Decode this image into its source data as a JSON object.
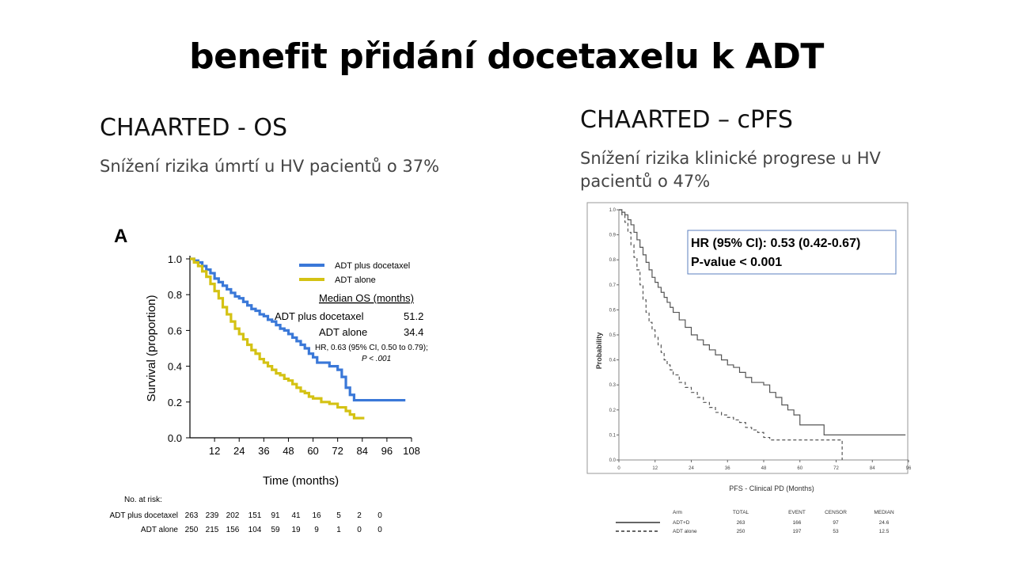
{
  "slide": {
    "title": "benefit přidání docetaxelu k ADT",
    "left_heading": "CHAARTED - OS",
    "left_subtitle": "Snížení rizika úmrtí u HV pacientů o 37%",
    "right_heading": "CHAARTED – cPFS",
    "right_subtitle_line1": "Snížení rizika klinické progrese u HV",
    "right_subtitle_line2": "pacientů o 47%"
  },
  "chart_data": [
    {
      "type": "line",
      "panel_label": "A",
      "xlabel": "Time (months)",
      "ylabel": "Survival (proportion)",
      "xlim": [
        0,
        108
      ],
      "ylim": [
        0,
        1.0
      ],
      "xticks": [
        12,
        24,
        36,
        48,
        60,
        72,
        84,
        96,
        108
      ],
      "yticks": [
        0.0,
        0.2,
        0.4,
        0.6,
        0.8,
        1.0
      ],
      "ytick_labels": [
        "0.0",
        "0.2",
        "0.4",
        "0.6",
        "0.8",
        "1.0"
      ],
      "legend": [
        {
          "name": "ADT plus docetaxel",
          "color": "#3a78d8"
        },
        {
          "name": "ADT alone",
          "color": "#d4c214"
        }
      ],
      "series": [
        {
          "name": "ADT plus docetaxel",
          "color": "#3a78d8",
          "points": [
            [
              0,
              1.0
            ],
            [
              2,
              0.99
            ],
            [
              4,
              0.98
            ],
            [
              6,
              0.96
            ],
            [
              8,
              0.94
            ],
            [
              10,
              0.92
            ],
            [
              12,
              0.89
            ],
            [
              14,
              0.87
            ],
            [
              16,
              0.85
            ],
            [
              18,
              0.83
            ],
            [
              20,
              0.81
            ],
            [
              22,
              0.79
            ],
            [
              24,
              0.78
            ],
            [
              26,
              0.76
            ],
            [
              28,
              0.74
            ],
            [
              30,
              0.72
            ],
            [
              32,
              0.71
            ],
            [
              34,
              0.69
            ],
            [
              36,
              0.68
            ],
            [
              38,
              0.66
            ],
            [
              40,
              0.65
            ],
            [
              42,
              0.63
            ],
            [
              44,
              0.61
            ],
            [
              46,
              0.6
            ],
            [
              48,
              0.58
            ],
            [
              50,
              0.56
            ],
            [
              52,
              0.54
            ],
            [
              54,
              0.52
            ],
            [
              56,
              0.5
            ],
            [
              58,
              0.47
            ],
            [
              60,
              0.45
            ],
            [
              62,
              0.42
            ],
            [
              66,
              0.42
            ],
            [
              68,
              0.4
            ],
            [
              72,
              0.38
            ],
            [
              74,
              0.34
            ],
            [
              76,
              0.28
            ],
            [
              78,
              0.24
            ],
            [
              80,
              0.21
            ],
            [
              105,
              0.21
            ]
          ]
        },
        {
          "name": "ADT alone",
          "color": "#d4c214",
          "points": [
            [
              0,
              1.0
            ],
            [
              2,
              0.98
            ],
            [
              4,
              0.96
            ],
            [
              6,
              0.93
            ],
            [
              8,
              0.9
            ],
            [
              10,
              0.86
            ],
            [
              12,
              0.82
            ],
            [
              14,
              0.78
            ],
            [
              16,
              0.73
            ],
            [
              18,
              0.69
            ],
            [
              20,
              0.65
            ],
            [
              22,
              0.61
            ],
            [
              24,
              0.58
            ],
            [
              26,
              0.55
            ],
            [
              28,
              0.52
            ],
            [
              30,
              0.49
            ],
            [
              32,
              0.47
            ],
            [
              34,
              0.44
            ],
            [
              36,
              0.42
            ],
            [
              38,
              0.4
            ],
            [
              40,
              0.38
            ],
            [
              42,
              0.36
            ],
            [
              44,
              0.35
            ],
            [
              46,
              0.33
            ],
            [
              48,
              0.32
            ],
            [
              50,
              0.3
            ],
            [
              52,
              0.28
            ],
            [
              54,
              0.26
            ],
            [
              56,
              0.25
            ],
            [
              58,
              0.23
            ],
            [
              60,
              0.22
            ],
            [
              64,
              0.2
            ],
            [
              68,
              0.19
            ],
            [
              72,
              0.17
            ],
            [
              76,
              0.15
            ],
            [
              78,
              0.13
            ],
            [
              80,
              0.11
            ],
            [
              85,
              0.11
            ]
          ]
        }
      ],
      "annotations": {
        "median_header": "Median OS (months)",
        "rows": [
          {
            "label": "ADT plus docetaxel",
            "value": "51.2"
          },
          {
            "label": "ADT alone",
            "value": "34.4"
          }
        ],
        "hr_line1": "HR, 0.63 (95% CI, 0.50 to 0.79);",
        "hr_line2": "P < .001"
      },
      "at_risk": {
        "header": "No. at risk:",
        "rows": [
          {
            "name": "ADT plus docetaxel",
            "values": [
              "263",
              "239",
              "202",
              "151",
              "91",
              "41",
              "16",
              "5",
              "2",
              "0"
            ]
          },
          {
            "name": "ADT alone",
            "values": [
              "250",
              "215",
              "156",
              "104",
              "59",
              "19",
              "9",
              "1",
              "0",
              "0"
            ]
          }
        ]
      }
    },
    {
      "type": "line",
      "xlabel": "PFS - Clinical PD (Months)",
      "ylabel": "Probability",
      "xlim": [
        0,
        96
      ],
      "ylim": [
        0,
        1.0
      ],
      "xticks": [
        0,
        12,
        24,
        36,
        48,
        60,
        72,
        84,
        96
      ],
      "yticks": [
        0.0,
        0.1,
        0.2,
        0.3,
        0.4,
        0.5,
        0.6,
        0.7,
        0.8,
        0.9,
        1.0
      ],
      "ytick_labels": [
        "0.0",
        "0.1",
        "0.2",
        "0.3",
        "0.4",
        "0.5",
        "0.6",
        "0.7",
        "0.8",
        "0.9",
        "1.0"
      ],
      "series": [
        {
          "name": "ADT+D",
          "style": "solid",
          "color": "#555555",
          "points": [
            [
              0,
              1.0
            ],
            [
              1,
              0.99
            ],
            [
              2,
              0.98
            ],
            [
              3,
              0.96
            ],
            [
              4,
              0.94
            ],
            [
              5,
              0.91
            ],
            [
              6,
              0.88
            ],
            [
              7,
              0.85
            ],
            [
              8,
              0.82
            ],
            [
              9,
              0.79
            ],
            [
              10,
              0.76
            ],
            [
              11,
              0.73
            ],
            [
              12,
              0.71
            ],
            [
              13,
              0.69
            ],
            [
              14,
              0.67
            ],
            [
              15,
              0.65
            ],
            [
              16,
              0.63
            ],
            [
              17,
              0.61
            ],
            [
              18,
              0.59
            ],
            [
              20,
              0.56
            ],
            [
              22,
              0.53
            ],
            [
              24,
              0.5
            ],
            [
              26,
              0.48
            ],
            [
              28,
              0.46
            ],
            [
              30,
              0.44
            ],
            [
              32,
              0.42
            ],
            [
              34,
              0.4
            ],
            [
              36,
              0.38
            ],
            [
              38,
              0.37
            ],
            [
              40,
              0.35
            ],
            [
              42,
              0.33
            ],
            [
              44,
              0.31
            ],
            [
              46,
              0.31
            ],
            [
              48,
              0.3
            ],
            [
              50,
              0.27
            ],
            [
              52,
              0.25
            ],
            [
              54,
              0.22
            ],
            [
              56,
              0.2
            ],
            [
              58,
              0.18
            ],
            [
              60,
              0.14
            ],
            [
              62,
              0.14
            ],
            [
              66,
              0.14
            ],
            [
              68,
              0.1
            ],
            [
              95,
              0.1
            ]
          ]
        },
        {
          "name": "ADT alone",
          "style": "dashed",
          "color": "#555555",
          "points": [
            [
              0,
              1.0
            ],
            [
              1,
              0.98
            ],
            [
              2,
              0.95
            ],
            [
              3,
              0.91
            ],
            [
              4,
              0.86
            ],
            [
              5,
              0.81
            ],
            [
              6,
              0.76
            ],
            [
              7,
              0.7
            ],
            [
              8,
              0.64
            ],
            [
              9,
              0.59
            ],
            [
              10,
              0.55
            ],
            [
              11,
              0.52
            ],
            [
              12,
              0.49
            ],
            [
              13,
              0.46
            ],
            [
              14,
              0.43
            ],
            [
              15,
              0.4
            ],
            [
              16,
              0.38
            ],
            [
              17,
              0.36
            ],
            [
              18,
              0.34
            ],
            [
              20,
              0.31
            ],
            [
              22,
              0.29
            ],
            [
              24,
              0.27
            ],
            [
              26,
              0.25
            ],
            [
              28,
              0.23
            ],
            [
              30,
              0.21
            ],
            [
              32,
              0.19
            ],
            [
              34,
              0.18
            ],
            [
              36,
              0.17
            ],
            [
              38,
              0.16
            ],
            [
              40,
              0.15
            ],
            [
              42,
              0.13
            ],
            [
              44,
              0.12
            ],
            [
              46,
              0.11
            ],
            [
              48,
              0.09
            ],
            [
              50,
              0.08
            ],
            [
              70,
              0.08
            ],
            [
              74,
              0.08
            ],
            [
              74,
              0.0
            ]
          ]
        }
      ],
      "hr_box": {
        "line1": "HR (95% CI): 0.53 (0.42-0.67)",
        "line2": "P-value < 0.001"
      },
      "summary_table": {
        "headers": [
          "Arm",
          "TOTAL",
          "EVENT",
          "CENSOR",
          "MEDIAN"
        ],
        "rows": [
          {
            "arm": "ADT+D",
            "values": [
              "263",
              "166",
              "97",
              "24.6"
            ],
            "style": "solid"
          },
          {
            "arm": "ADT alone",
            "values": [
              "250",
              "197",
              "53",
              "12.5"
            ],
            "style": "dashed"
          }
        ]
      }
    }
  ]
}
